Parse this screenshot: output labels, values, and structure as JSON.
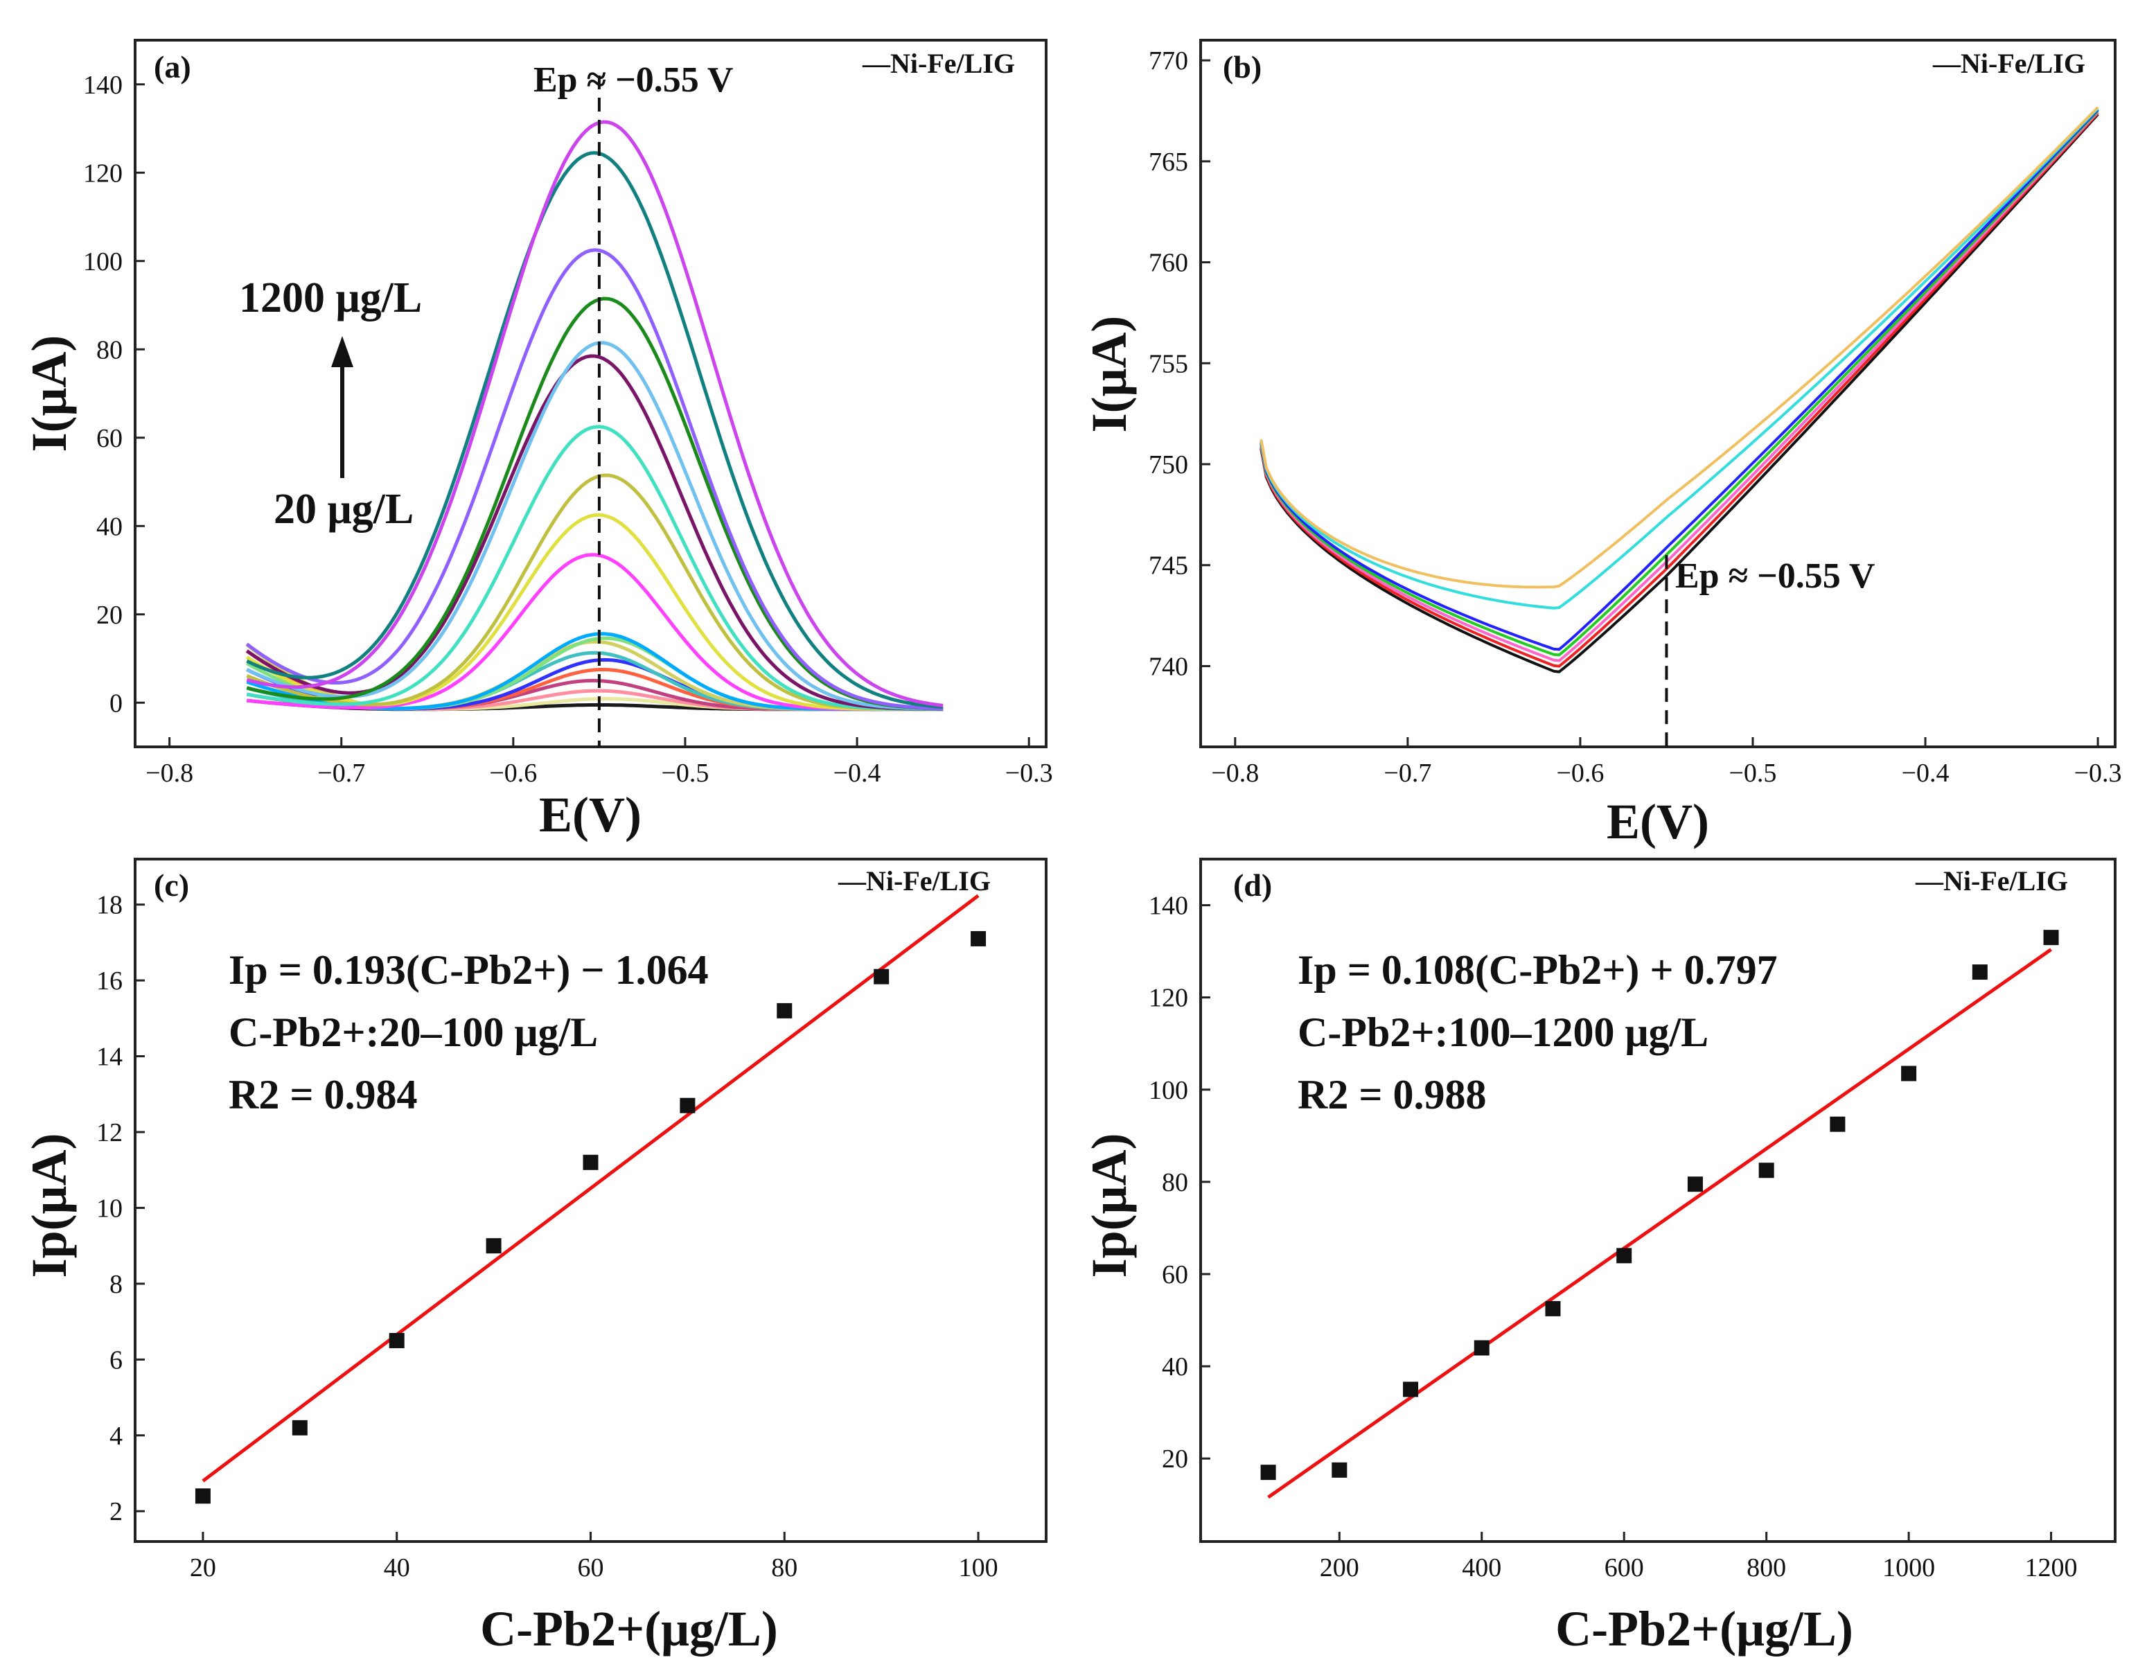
{
  "colors": {
    "fit_line": "#ee1111",
    "points": "#111111",
    "curves_a": [
      "#1a1a1a",
      "#e8e8a0",
      "#ff8fa0",
      "#c04080",
      "#ff6040",
      "#3030ff",
      "#40c0c0",
      "#d0d060",
      "#80e080",
      "#00aaff",
      "#ff40ff",
      "#e0e040",
      "#c0c040",
      "#40e0c0",
      "#7a1466",
      "#70c0f0",
      "#1a8a1a",
      "#9060ff",
      "#118080",
      "#cc44ee"
    ],
    "curves_b": [
      "#111111",
      "#ee2222",
      "#ff66cc",
      "#22cc22",
      "#2222ff",
      "#33dddd",
      "#f0c060"
    ]
  },
  "chart_data": [
    {
      "type": "line",
      "panel": "(a)",
      "legend": "—Ni-Fe/LIG",
      "xlabel": "E(V)",
      "ylabel": "I(μA)",
      "xlim": [
        -0.82,
        -0.29
      ],
      "ylim": [
        -10,
        150
      ],
      "xticks": [
        -0.8,
        -0.7,
        -0.6,
        -0.5,
        -0.4,
        -0.3
      ],
      "xtick_labels": [
        "−0.8",
        "−0.7",
        "−0.6",
        "−0.5",
        "−0.4",
        "−0.3"
      ],
      "yticks": [
        0,
        20,
        40,
        60,
        80,
        100,
        120,
        140
      ],
      "ytick_labels": [
        "0",
        "20",
        "40",
        "60",
        "80",
        "100",
        "120",
        "140"
      ],
      "peak_potential_label": "Ep ≈ −0.55 V",
      "peak_potential": -0.55,
      "conc_high_label": "1200 μg/L",
      "conc_low_label": "20 μg/L",
      "peak_heights": [
        1,
        2.4,
        4.2,
        6.5,
        9,
        11.2,
        12.8,
        15.3,
        16.1,
        17.1,
        35,
        44,
        53,
        64,
        80,
        83,
        93,
        104,
        126,
        133
      ]
    },
    {
      "type": "line",
      "panel": "(b)",
      "legend": "—Ni-Fe/LIG",
      "xlabel": "E(V)",
      "ylabel": "I(μA)",
      "xlim": [
        -0.82,
        -0.29
      ],
      "ylim": [
        736,
        771
      ],
      "xticks": [
        -0.8,
        -0.7,
        -0.6,
        -0.5,
        -0.4,
        -0.3
      ],
      "xtick_labels": [
        "−0.8",
        "−0.7",
        "−0.6",
        "−0.5",
        "−0.4",
        "−0.3"
      ],
      "yticks": [
        740,
        745,
        750,
        755,
        760,
        765,
        770
      ],
      "ytick_labels": [
        "740",
        "745",
        "750",
        "755",
        "760",
        "765",
        "770"
      ],
      "peak_potential_label": "Ep ≈ −0.55 V",
      "peak_potential": -0.55
    },
    {
      "type": "scatter",
      "panel": "(c)",
      "legend": "—Ni-Fe/LIG",
      "xlabel": "C-Pb2+(μg/L)",
      "ylabel": "Ip(μA)",
      "xlim": [
        13,
        107
      ],
      "ylim": [
        1.2,
        19.2
      ],
      "xticks": [
        20,
        40,
        60,
        80,
        100
      ],
      "xtick_labels": [
        "20",
        "40",
        "60",
        "80",
        "100"
      ],
      "yticks": [
        2,
        4,
        6,
        8,
        10,
        12,
        14,
        16,
        18
      ],
      "ytick_labels": [
        "2",
        "4",
        "6",
        "8",
        "10",
        "12",
        "14",
        "16",
        "18"
      ],
      "x": [
        20,
        30,
        40,
        50,
        60,
        70,
        80,
        90,
        100
      ],
      "y": [
        2.4,
        4.2,
        6.5,
        9.0,
        11.2,
        12.7,
        15.2,
        16.1,
        17.1
      ],
      "fit": {
        "slope": 0.193,
        "intercept": -1.064,
        "x_range": [
          20,
          100
        ]
      },
      "equation": "Ip = 0.193(C-Pb2+) − 1.064",
      "range_text": "C-Pb2+:20–100 μg/L",
      "r2_text": "R2 = 0.984"
    },
    {
      "type": "scatter",
      "panel": "(d)",
      "legend": "—Ni-Fe/LIG",
      "xlabel": "C-Pb2+(μg/L)",
      "ylabel": "Ip(μA)",
      "xlim": [
        5,
        1290
      ],
      "ylim": [
        2,
        150
      ],
      "xticks": [
        200,
        400,
        600,
        800,
        1000,
        1200
      ],
      "xtick_labels": [
        "200",
        "400",
        "600",
        "800",
        "1000",
        "1200"
      ],
      "yticks": [
        20,
        40,
        60,
        80,
        100,
        120,
        140
      ],
      "ytick_labels": [
        "20",
        "40",
        "60",
        "80",
        "100",
        "120",
        "140"
      ],
      "x": [
        100,
        200,
        300,
        400,
        500,
        600,
        700,
        800,
        900,
        1000,
        1100,
        1200
      ],
      "y": [
        17,
        17.5,
        35,
        44,
        52.5,
        64,
        79.5,
        82.5,
        92.5,
        103.5,
        125.5,
        133
      ],
      "fit": {
        "slope": 0.108,
        "intercept": 0.797,
        "x_range": [
          100,
          1200
        ]
      },
      "equation": "Ip = 0.108(C-Pb2+) + 0.797",
      "range_text": "C-Pb2+:100–1200 μg/L",
      "r2_text": "R2 = 0.988"
    }
  ]
}
